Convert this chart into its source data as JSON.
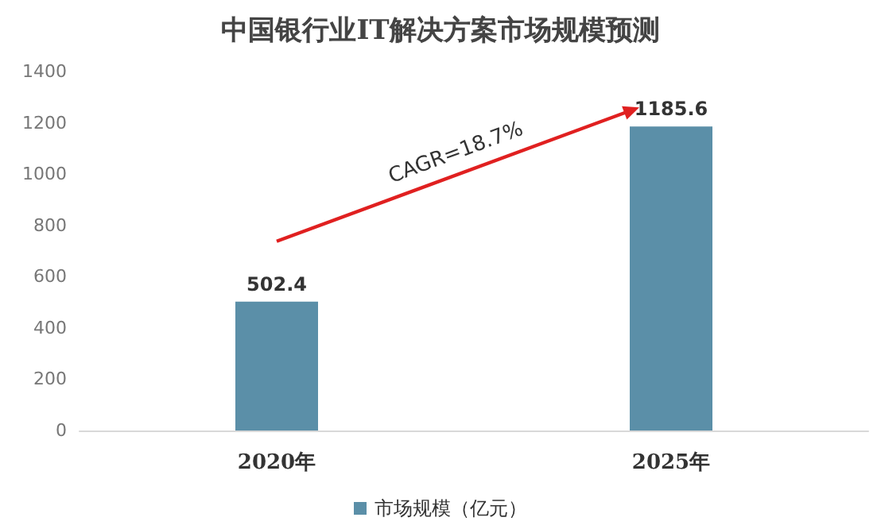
{
  "chart_data": {
    "type": "bar",
    "title": "中国银行业IT解决方案市场规模预测",
    "categories": [
      "2020年",
      "2025年"
    ],
    "series": [
      {
        "name": "市场规模（亿元）",
        "color": "#5b8fa8",
        "values": [
          502.4,
          1185.6
        ]
      }
    ],
    "data_labels": true,
    "ylim": [
      0,
      1400
    ],
    "yticks": [
      0,
      200,
      400,
      600,
      800,
      1000,
      1200,
      1400
    ],
    "grid": false,
    "legend": "bottom",
    "annotations": [
      "CAGR=18.7%"
    ]
  }
}
